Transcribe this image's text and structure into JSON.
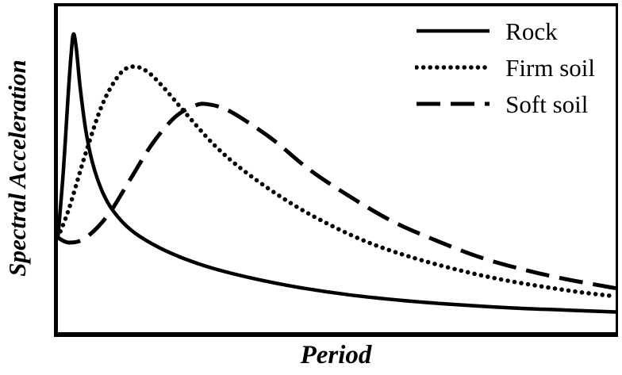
{
  "figure": {
    "background": "#ffffff",
    "line_color": "#000000"
  },
  "chart_data": {
    "type": "line",
    "title": "",
    "xlabel": "Period",
    "ylabel": "Spectral Acceleration",
    "x_range": [
      0,
      1
    ],
    "y_range": [
      0,
      1
    ],
    "grid": false,
    "tick_labels": "none",
    "legend_position": "upper right",
    "series": [
      {
        "name": "Rock",
        "line_style": "solid",
        "color": "#000000",
        "points": [
          [
            0.0,
            0.29
          ],
          [
            0.01,
            0.5
          ],
          [
            0.018,
            0.72
          ],
          [
            0.024,
            0.86
          ],
          [
            0.028,
            0.915
          ],
          [
            0.033,
            0.87
          ],
          [
            0.04,
            0.75
          ],
          [
            0.05,
            0.62
          ],
          [
            0.062,
            0.52
          ],
          [
            0.08,
            0.43
          ],
          [
            0.1,
            0.37
          ],
          [
            0.13,
            0.315
          ],
          [
            0.17,
            0.27
          ],
          [
            0.22,
            0.23
          ],
          [
            0.28,
            0.195
          ],
          [
            0.35,
            0.165
          ],
          [
            0.43,
            0.138
          ],
          [
            0.52,
            0.115
          ],
          [
            0.62,
            0.097
          ],
          [
            0.72,
            0.084
          ],
          [
            0.82,
            0.074
          ],
          [
            0.91,
            0.068
          ],
          [
            1.0,
            0.062
          ]
        ]
      },
      {
        "name": "Firm soil",
        "line_style": "dotted",
        "color": "#000000",
        "points": [
          [
            0.0,
            0.29
          ],
          [
            0.02,
            0.38
          ],
          [
            0.05,
            0.55
          ],
          [
            0.08,
            0.7
          ],
          [
            0.11,
            0.79
          ],
          [
            0.134,
            0.815
          ],
          [
            0.16,
            0.8
          ],
          [
            0.19,
            0.75
          ],
          [
            0.23,
            0.67
          ],
          [
            0.28,
            0.575
          ],
          [
            0.33,
            0.5
          ],
          [
            0.4,
            0.415
          ],
          [
            0.47,
            0.345
          ],
          [
            0.55,
            0.28
          ],
          [
            0.63,
            0.232
          ],
          [
            0.72,
            0.19
          ],
          [
            0.8,
            0.16
          ],
          [
            0.88,
            0.137
          ],
          [
            0.94,
            0.122
          ],
          [
            1.0,
            0.11
          ]
        ]
      },
      {
        "name": "Soft soil",
        "line_style": "dashed",
        "color": "#000000",
        "points": [
          [
            0.0,
            0.29
          ],
          [
            0.02,
            0.275
          ],
          [
            0.05,
            0.29
          ],
          [
            0.09,
            0.36
          ],
          [
            0.13,
            0.47
          ],
          [
            0.17,
            0.58
          ],
          [
            0.21,
            0.66
          ],
          [
            0.245,
            0.695
          ],
          [
            0.267,
            0.7
          ],
          [
            0.3,
            0.685
          ],
          [
            0.34,
            0.645
          ],
          [
            0.39,
            0.585
          ],
          [
            0.45,
            0.5
          ],
          [
            0.52,
            0.42
          ],
          [
            0.6,
            0.34
          ],
          [
            0.68,
            0.28
          ],
          [
            0.76,
            0.228
          ],
          [
            0.84,
            0.19
          ],
          [
            0.91,
            0.163
          ],
          [
            1.0,
            0.135
          ]
        ]
      }
    ]
  }
}
